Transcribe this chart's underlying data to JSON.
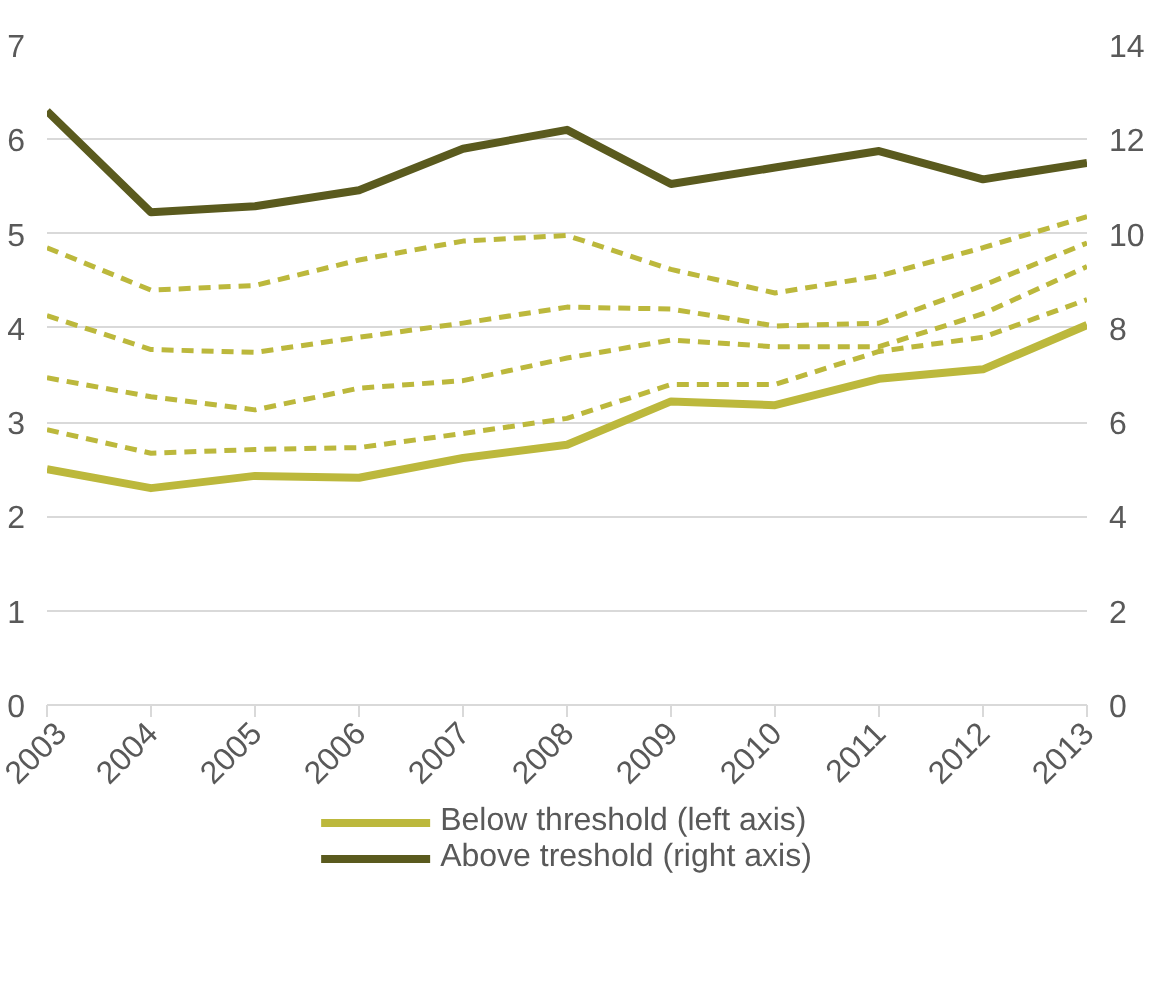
{
  "chart_data": {
    "type": "line",
    "categories": [
      "2003",
      "2004",
      "2005",
      "2006",
      "2007",
      "2008",
      "2009",
      "2010",
      "2011",
      "2012",
      "2013"
    ],
    "series": [
      {
        "name": "Below threshold (left axis)",
        "color": "#bcb83c",
        "values": [
          2.5,
          2.3,
          2.43,
          2.41,
          2.62,
          2.76,
          3.22,
          3.18,
          3.46,
          3.56,
          4.03
        ]
      },
      {
        "name": "Above treshold (right axis)",
        "color": "#5a5a1e",
        "axis": "y2",
        "values": [
          12.6,
          10.45,
          10.58,
          10.92,
          11.8,
          12.2,
          11.05,
          11.4,
          11.75,
          11.15,
          11.5
        ]
      },
      {
        "color": "#bcb83c",
        "line_style": "dashed",
        "values": [
          4.85,
          4.4,
          4.45,
          4.72,
          4.92,
          4.98,
          4.62,
          4.37,
          4.55,
          4.85,
          5.18
        ]
      },
      {
        "color": "#bcb83c",
        "line_style": "dashed",
        "values": [
          4.13,
          3.77,
          3.74,
          3.9,
          4.05,
          4.22,
          4.2,
          4.02,
          4.05,
          4.45,
          4.9
        ]
      },
      {
        "color": "#bcb83c",
        "line_style": "dashed",
        "values": [
          3.47,
          3.27,
          3.13,
          3.36,
          3.44,
          3.68,
          3.87,
          3.8,
          3.8,
          4.15,
          4.65
        ]
      },
      {
        "color": "#bcb83c",
        "line_style": "dashed",
        "values": [
          2.92,
          2.67,
          2.71,
          2.73,
          2.88,
          3.04,
          3.4,
          3.4,
          3.75,
          3.9,
          4.3
        ]
      }
    ],
    "ylim": [
      0,
      7
    ],
    "yticks": [
      0,
      1,
      2,
      3,
      4,
      5,
      6,
      7
    ],
    "y2lim": [
      0,
      14
    ],
    "y2ticks": [
      0,
      2,
      4,
      6,
      8,
      10,
      12,
      14
    ],
    "grid": "y",
    "legend": "bottom",
    "line_style": "solid",
    "marker": "none"
  }
}
